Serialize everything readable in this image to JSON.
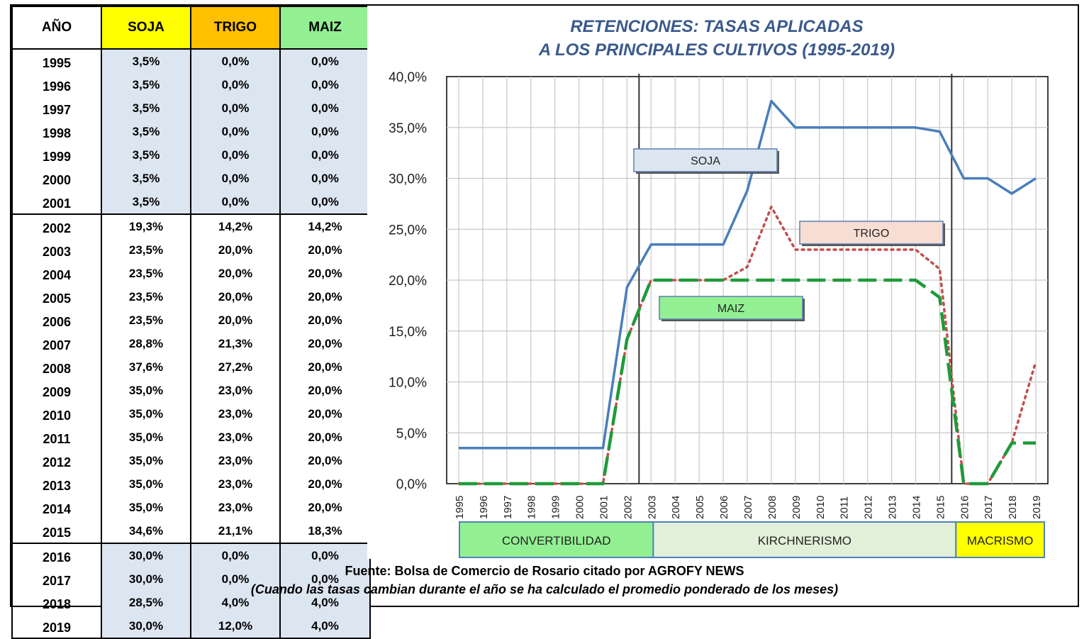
{
  "table": {
    "headers": [
      "AÑO",
      "SOJA",
      "TRIGO",
      "MAIZ"
    ],
    "header_colors": [
      "#ffffff",
      "#ffff00",
      "#ffc000",
      "#92f092"
    ],
    "rows": [
      [
        "1995",
        "3,5%",
        "0,0%",
        "0,0%"
      ],
      [
        "1996",
        "3,5%",
        "0,0%",
        "0,0%"
      ],
      [
        "1997",
        "3,5%",
        "0,0%",
        "0,0%"
      ],
      [
        "1998",
        "3,5%",
        "0,0%",
        "0,0%"
      ],
      [
        "1999",
        "3,5%",
        "0,0%",
        "0,0%"
      ],
      [
        "2000",
        "3,5%",
        "0,0%",
        "0,0%"
      ],
      [
        "2001",
        "3,5%",
        "0,0%",
        "0,0%"
      ],
      [
        "2002",
        "19,3%",
        "14,2%",
        "14,2%"
      ],
      [
        "2003",
        "23,5%",
        "20,0%",
        "20,0%"
      ],
      [
        "2004",
        "23,5%",
        "20,0%",
        "20,0%"
      ],
      [
        "2005",
        "23,5%",
        "20,0%",
        "20,0%"
      ],
      [
        "2006",
        "23,5%",
        "20,0%",
        "20,0%"
      ],
      [
        "2007",
        "28,8%",
        "21,3%",
        "20,0%"
      ],
      [
        "2008",
        "37,6%",
        "27,2%",
        "20,0%"
      ],
      [
        "2009",
        "35,0%",
        "23,0%",
        "20,0%"
      ],
      [
        "2010",
        "35,0%",
        "23,0%",
        "20,0%"
      ],
      [
        "2011",
        "35,0%",
        "23,0%",
        "20,0%"
      ],
      [
        "2012",
        "35,0%",
        "23,0%",
        "20,0%"
      ],
      [
        "2013",
        "35,0%",
        "23,0%",
        "20,0%"
      ],
      [
        "2014",
        "35,0%",
        "23,0%",
        "20,0%"
      ],
      [
        "2015",
        "34,6%",
        "21,1%",
        "18,3%"
      ],
      [
        "2016",
        "30,0%",
        "0,0%",
        "0,0%"
      ],
      [
        "2017",
        "30,0%",
        "0,0%",
        "0,0%"
      ],
      [
        "2018",
        "28,5%",
        "4,0%",
        "4,0%"
      ],
      [
        "2019",
        "30,0%",
        "12,0%",
        "4,0%"
      ]
    ]
  },
  "chart_data": {
    "type": "line",
    "title": [
      "RETENCIONES: TASAS APLICADAS",
      "A LOS PRINCIPALES CULTIVOS (1995-2019)"
    ],
    "categories": [
      "1995",
      "1996",
      "1997",
      "1998",
      "1999",
      "2000",
      "2001",
      "2002",
      "2003",
      "2004",
      "2005",
      "2006",
      "2007",
      "2008",
      "2009",
      "2010",
      "2011",
      "2012",
      "2013",
      "2014",
      "2015",
      "2016",
      "2017",
      "2018",
      "2019"
    ],
    "ylim": [
      0,
      40
    ],
    "yticks": [
      "0,0%",
      "5,0%",
      "10,0%",
      "15,0%",
      "20,0%",
      "25,0%",
      "30,0%",
      "35,0%",
      "40,0%"
    ],
    "grid": true,
    "series": [
      {
        "name": "SOJA",
        "color": "#4a7ebb",
        "style": "solid",
        "values": [
          3.5,
          3.5,
          3.5,
          3.5,
          3.5,
          3.5,
          3.5,
          19.3,
          23.5,
          23.5,
          23.5,
          23.5,
          28.8,
          37.6,
          35.0,
          35.0,
          35.0,
          35.0,
          35.0,
          35.0,
          34.6,
          30.0,
          30.0,
          28.5,
          30.0
        ],
        "label_bg": "#dce6f1"
      },
      {
        "name": "TRIGO",
        "color": "#c0504d",
        "style": "dotted",
        "values": [
          0,
          0,
          0,
          0,
          0,
          0,
          0,
          14.2,
          20.0,
          20.0,
          20.0,
          20.0,
          21.3,
          27.2,
          23.0,
          23.0,
          23.0,
          23.0,
          23.0,
          23.0,
          21.1,
          0,
          0,
          4.0,
          12.0
        ],
        "label_bg": "#f8ddd3"
      },
      {
        "name": "MAIZ",
        "color": "#1f9a3a",
        "style": "dashed",
        "values": [
          0,
          0,
          0,
          0,
          0,
          0,
          0,
          14.2,
          20.0,
          20.0,
          20.0,
          20.0,
          20.0,
          20.0,
          20.0,
          20.0,
          20.0,
          20.0,
          20.0,
          20.0,
          18.3,
          0,
          0,
          4.0,
          4.0
        ],
        "label_bg": "#92f092"
      }
    ],
    "period_dividers": [
      "2002",
      "2015"
    ],
    "periods": [
      {
        "label": "CONVERTIBILIDAD",
        "color": "#92f092"
      },
      {
        "label": "KIRCHNERISMO",
        "color": "#e2f0d9"
      },
      {
        "label": "MACRISMO",
        "color": "#ffff00"
      }
    ]
  },
  "footer": {
    "source": "Fuente: Bolsa de Comercio de Rosario citado por AGROFY NEWS",
    "note": "(Cuando las tasas cambian durante el año se ha calculado el promedio ponderado de los meses)"
  }
}
